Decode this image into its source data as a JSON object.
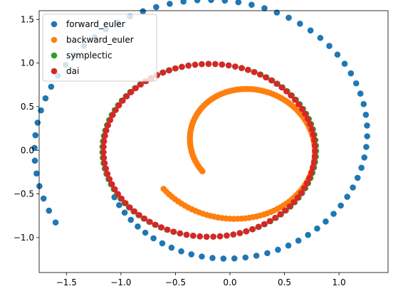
{
  "chart_data": {
    "type": "scatter",
    "title": "",
    "xlabel": "",
    "ylabel": "",
    "xlim": [
      -1.75,
      1.45
    ],
    "ylim": [
      -1.4,
      1.6
    ],
    "xticks": [
      -1.5,
      -1.0,
      -0.5,
      0.0,
      0.5,
      1.0
    ],
    "xtick_labels": [
      "−1.5",
      "−1.0",
      "−0.5",
      "0.0",
      "0.5",
      "1.0"
    ],
    "yticks": [
      -1.0,
      -0.5,
      0.0,
      0.5,
      1.0,
      1.5
    ],
    "ytick_labels": [
      "−1.0",
      "−0.5",
      "0.0",
      "0.5",
      "1.0",
      "1.5"
    ],
    "grid": false,
    "legend_position": "top-left",
    "series": [
      {
        "name": "forward_euler",
        "color": "#1f77b4",
        "start": [
          -1.47,
          -0.71
        ],
        "a": [
          -1.105,
          -1.245
        ],
        "b": [
          0.05,
          0.045
        ],
        "center": [
          -0.11,
          0.1
        ],
        "n": 77
      },
      {
        "name": "backward_euler",
        "color": "#ff7f0e",
        "start": [
          -0.55,
          -0.38
        ],
        "a": [
          -0.85,
          -0.89
        ],
        "b": [
          -0.034,
          -0.029
        ],
        "center": [
          0.1,
          0.05
        ],
        "n": 140
      },
      {
        "name": "symplectic",
        "color": "#2ca02c",
        "start": [
          -0.98,
          0.72
        ],
        "a": [
          -0.98,
          -0.99
        ],
        "b": [
          0.0,
          0.0
        ],
        "center": [
          -0.19,
          0.0
        ],
        "n": 100
      },
      {
        "name": "dai",
        "color": "#d62728",
        "start": [
          -0.98,
          0.72
        ],
        "a": [
          -0.97,
          -0.99
        ],
        "b": [
          0.0,
          0.0
        ],
        "center": [
          -0.19,
          0.0
        ],
        "n": 100
      }
    ]
  }
}
